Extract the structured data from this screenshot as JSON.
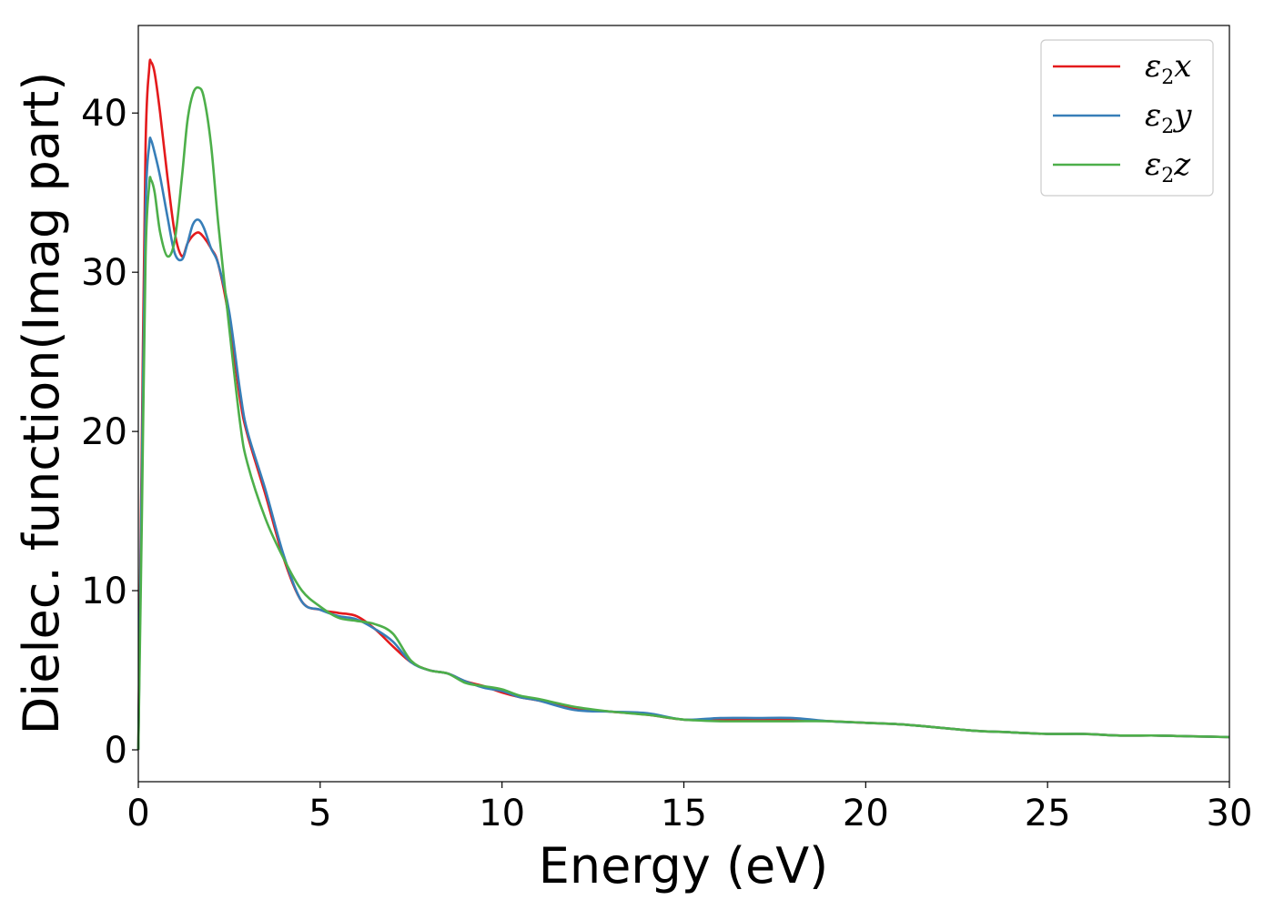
{
  "chart_data": {
    "type": "line",
    "xlabel": "Energy (eV)",
    "ylabel": "Dielec. function(Imag part)",
    "xlim": [
      0,
      30
    ],
    "ylim": [
      -2,
      45.5
    ],
    "xticks": [
      0,
      5,
      10,
      15,
      20,
      25,
      30
    ],
    "yticks": [
      0,
      10,
      20,
      30,
      40
    ],
    "grid": false,
    "legend_position": "top-right",
    "series": [
      {
        "name": "ε₂x",
        "legend_base": "ε",
        "legend_sub": "2",
        "legend_var": "x",
        "color": "#e41a1c",
        "x": [
          0,
          0.1,
          0.2,
          0.3,
          0.35,
          0.45,
          0.6,
          0.8,
          1.0,
          1.2,
          1.35,
          1.5,
          1.65,
          1.8,
          2.0,
          2.2,
          2.5,
          2.8,
          3.0,
          3.5,
          4.0,
          4.5,
          5.0,
          5.5,
          6.0,
          6.5,
          7.0,
          7.5,
          8.0,
          8.5,
          9.0,
          9.5,
          10.0,
          10.5,
          11,
          12,
          13,
          14,
          15,
          16,
          17,
          18,
          19,
          20,
          21,
          22,
          23,
          24,
          25,
          26,
          27,
          28,
          29,
          30
        ],
        "values": [
          0,
          20,
          38,
          42.8,
          43.2,
          42.5,
          40,
          36,
          32.5,
          31.0,
          31.8,
          32.3,
          32.5,
          32.2,
          31.5,
          30.5,
          27.0,
          22.0,
          19.8,
          16.0,
          12.0,
          9.3,
          8.8,
          8.6,
          8.4,
          7.6,
          6.5,
          5.5,
          5.0,
          4.8,
          4.3,
          4.0,
          3.6,
          3.3,
          3.1,
          2.6,
          2.4,
          2.2,
          1.9,
          1.9,
          1.9,
          1.9,
          1.8,
          1.7,
          1.6,
          1.4,
          1.2,
          1.1,
          1.0,
          1.0,
          0.9,
          0.9,
          0.85,
          0.8
        ]
      },
      {
        "name": "ε₂y",
        "legend_base": "ε",
        "legend_sub": "2",
        "legend_var": "y",
        "color": "#377eb8",
        "x": [
          0,
          0.1,
          0.2,
          0.3,
          0.35,
          0.45,
          0.6,
          0.8,
          1.0,
          1.2,
          1.35,
          1.5,
          1.65,
          1.8,
          2.0,
          2.2,
          2.5,
          2.8,
          3.0,
          3.5,
          4.0,
          4.5,
          5.0,
          5.5,
          6.0,
          6.5,
          7.0,
          7.5,
          8.0,
          8.5,
          9.0,
          9.5,
          10.0,
          10.5,
          11,
          12,
          13,
          14,
          15,
          16,
          17,
          18,
          19,
          20,
          21,
          22,
          23,
          24,
          25,
          26,
          27,
          28,
          29,
          30
        ],
        "values": [
          0,
          18,
          34,
          38.0,
          38.3,
          37.5,
          36,
          33.5,
          31.2,
          30.8,
          31.8,
          33.0,
          33.3,
          32.8,
          31.5,
          30.5,
          27.5,
          22.5,
          20.0,
          16.3,
          12.2,
          9.3,
          8.8,
          8.4,
          8.2,
          7.6,
          6.8,
          5.5,
          5.0,
          4.8,
          4.3,
          3.9,
          3.7,
          3.3,
          3.1,
          2.5,
          2.4,
          2.3,
          1.9,
          2.0,
          2.0,
          2.0,
          1.8,
          1.7,
          1.6,
          1.4,
          1.2,
          1.1,
          1.0,
          1.0,
          0.9,
          0.9,
          0.85,
          0.8
        ]
      },
      {
        "name": "ε₂z",
        "legend_base": "ε",
        "legend_sub": "2",
        "legend_var": "z",
        "color": "#4daf4a",
        "x": [
          0,
          0.1,
          0.2,
          0.3,
          0.35,
          0.45,
          0.6,
          0.8,
          1.0,
          1.2,
          1.35,
          1.5,
          1.65,
          1.8,
          2.0,
          2.2,
          2.5,
          2.8,
          3.0,
          3.5,
          4.0,
          4.5,
          5.0,
          5.5,
          6.0,
          6.5,
          7.0,
          7.5,
          8.0,
          8.5,
          9.0,
          9.5,
          10.0,
          10.5,
          11,
          12,
          13,
          14,
          15,
          16,
          17,
          18,
          19,
          20,
          21,
          22,
          23,
          24,
          25,
          26,
          27,
          28,
          29,
          30
        ],
        "values": [
          0,
          15,
          31,
          35.5,
          35.8,
          35.0,
          32.5,
          31.0,
          32.0,
          36.0,
          39.5,
          41.2,
          41.6,
          41.0,
          38.0,
          33.0,
          26.5,
          20.5,
          18.0,
          14.5,
          12.0,
          10.0,
          9.0,
          8.3,
          8.1,
          7.9,
          7.3,
          5.6,
          5.0,
          4.8,
          4.2,
          4.0,
          3.8,
          3.4,
          3.2,
          2.7,
          2.4,
          2.2,
          1.9,
          1.8,
          1.8,
          1.8,
          1.8,
          1.7,
          1.6,
          1.4,
          1.2,
          1.1,
          1.0,
          1.0,
          0.9,
          0.9,
          0.85,
          0.8
        ]
      }
    ]
  }
}
